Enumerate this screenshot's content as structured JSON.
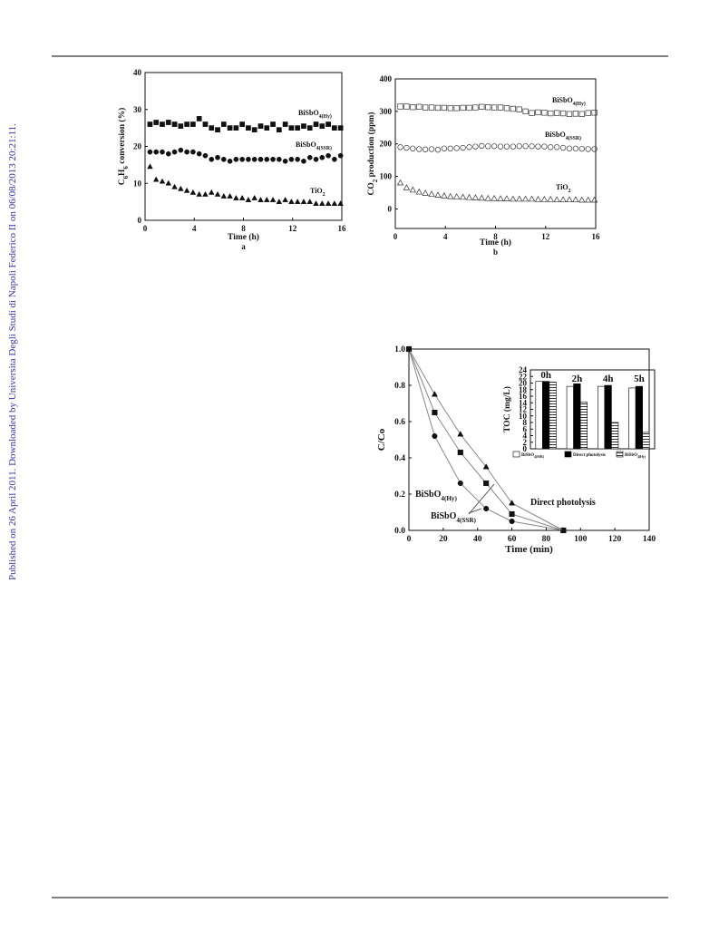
{
  "side_note": "Published on 26 April 2011. Downloaded by Universita Degli Studi di Napoli Federico II on 06/08/2013 20:21:11.",
  "chart_data": [
    {
      "type": "scatter",
      "caption": "a",
      "xlabel": "Time (h)",
      "ylabel": [
        {
          "text": "C"
        },
        {
          "sub": "6"
        },
        {
          "text": "H"
        },
        {
          "sub": "6"
        },
        {
          "text": " conversion (%)"
        }
      ],
      "xlim": [
        0,
        16
      ],
      "xticks": [
        0,
        4,
        8,
        12,
        16
      ],
      "ylim": [
        0,
        40
      ],
      "yticks": [
        0,
        10,
        20,
        30,
        40
      ],
      "x": [
        0.4,
        0.9,
        1.4,
        1.9,
        2.4,
        2.9,
        3.4,
        3.9,
        4.4,
        4.9,
        5.4,
        5.9,
        6.4,
        6.9,
        7.4,
        7.9,
        8.4,
        8.9,
        9.4,
        9.9,
        10.4,
        10.9,
        11.4,
        11.9,
        12.4,
        12.9,
        13.4,
        13.9,
        14.4,
        14.9,
        15.4,
        15.9
      ],
      "series": [
        {
          "name": [
            {
              "text": "BiSbO"
            },
            {
              "sub": "4(Hy)"
            }
          ],
          "marker": "square",
          "color": "#111",
          "values": [
            26,
            26.5,
            26,
            26.5,
            26,
            25.5,
            26,
            26,
            27.5,
            26,
            25,
            24.5,
            26,
            25,
            25,
            26,
            25,
            24.5,
            25.5,
            25,
            26,
            24.5,
            26,
            25,
            25,
            25.5,
            25,
            26,
            25.5,
            26,
            25,
            25
          ]
        },
        {
          "name": [
            {
              "text": "BiSbO"
            },
            {
              "sub": "4(SSR)"
            }
          ],
          "marker": "circle",
          "color": "#111",
          "values": [
            18.5,
            18.5,
            18.5,
            18,
            18.5,
            19,
            18.5,
            18.5,
            18,
            17.5,
            16.5,
            17,
            16.5,
            16,
            16.5,
            16.5,
            16.5,
            16.5,
            16.5,
            16.5,
            16.5,
            16.5,
            16,
            16.5,
            16.5,
            16,
            17,
            16.5,
            17,
            17.5,
            16.5,
            17.5
          ]
        },
        {
          "name": [
            {
              "text": "TiO"
            },
            {
              "sub": "2"
            }
          ],
          "marker": "triangle",
          "color": "#111",
          "values": [
            14.5,
            11,
            10.5,
            10,
            9,
            8.5,
            8,
            7.5,
            7,
            7,
            7.5,
            7,
            6.5,
            6.5,
            6,
            6,
            5.5,
            6,
            5.5,
            5.5,
            5.5,
            5,
            5.5,
            5,
            5,
            5,
            5,
            4.5,
            4.5,
            4.5,
            4.5,
            4.5
          ]
        }
      ]
    },
    {
      "type": "scatter",
      "caption": "b",
      "xlabel": "Time (h)",
      "ylabel": [
        {
          "text": "CO"
        },
        {
          "sub": "2"
        },
        {
          "text": " production (ppm)"
        }
      ],
      "xlim": [
        0,
        16
      ],
      "xticks": [
        0,
        4,
        8,
        12,
        16
      ],
      "ylim": [
        -60,
        400
      ],
      "yticks": [
        0,
        100,
        200,
        300,
        400
      ],
      "x": [
        0.4,
        0.9,
        1.4,
        1.9,
        2.4,
        2.9,
        3.4,
        3.9,
        4.4,
        4.9,
        5.4,
        5.9,
        6.4,
        6.9,
        7.4,
        7.9,
        8.4,
        8.9,
        9.4,
        9.9,
        10.4,
        10.9,
        11.4,
        11.9,
        12.4,
        12.9,
        13.4,
        13.9,
        14.4,
        14.9,
        15.4,
        15.9
      ],
      "series": [
        {
          "name": [
            {
              "text": "BiSbO"
            },
            {
              "sub": "4(Hy)"
            }
          ],
          "marker": "square-open",
          "color": "#333",
          "values": [
            315,
            315,
            313,
            314,
            312,
            312,
            311,
            311,
            310,
            310,
            311,
            311,
            312,
            314,
            313,
            312,
            312,
            310,
            308,
            306,
            300,
            295,
            297,
            296,
            294,
            295,
            294,
            292,
            293,
            292,
            295,
            296
          ]
        },
        {
          "name": [
            {
              "text": "BiSbO"
            },
            {
              "sub": "4(SSR)"
            }
          ],
          "marker": "circle-open",
          "color": "#333",
          "values": [
            190,
            188,
            186,
            184,
            183,
            184,
            182,
            186,
            186,
            187,
            188,
            190,
            192,
            194,
            193,
            193,
            192,
            192,
            192,
            193,
            193,
            193,
            192,
            192,
            190,
            190,
            188,
            186,
            186,
            185,
            184,
            184
          ]
        },
        {
          "name": [
            {
              "text": "TiO"
            },
            {
              "sub": "2"
            }
          ],
          "marker": "triangle-open",
          "color": "#333",
          "values": [
            80,
            65,
            58,
            52,
            48,
            45,
            42,
            40,
            38,
            37,
            36,
            35,
            34,
            33,
            32,
            32,
            31,
            31,
            30,
            30,
            30,
            30,
            29,
            29,
            29,
            28,
            28,
            28,
            28,
            27,
            27,
            27
          ]
        }
      ]
    },
    {
      "type": "line",
      "xlabel": "Time (min)",
      "ylabel": [
        {
          "text": "C/Co"
        }
      ],
      "xlim": [
        0,
        140
      ],
      "xticks": [
        0,
        20,
        40,
        60,
        80,
        100,
        120,
        140
      ],
      "ylim": [
        0,
        1
      ],
      "yticks": [
        {
          "value": 0,
          "label": "0.0"
        },
        0.2,
        0.4,
        0.6,
        0.8,
        {
          "value": 1,
          "label": "1.0"
        }
      ],
      "x": [
        0,
        15,
        30,
        45,
        60,
        90
      ],
      "series": [
        {
          "name": [
            {
              "text": "BiSbO"
            },
            {
              "sub": "4(Hy)"
            }
          ],
          "marker": "circle",
          "color": "#888",
          "values": [
            1,
            0.52,
            0.26,
            0.12,
            0.05,
            0
          ]
        },
        {
          "name": [
            {
              "text": "BiSbO"
            },
            {
              "sub": "4(SSR)"
            }
          ],
          "marker": "square",
          "color": "#888",
          "values": [
            1,
            0.65,
            0.43,
            0.26,
            0.09,
            0
          ]
        },
        {
          "name": [
            {
              "text": "Direct photolysis"
            }
          ],
          "marker": "triangle",
          "color": "#888",
          "values": [
            1,
            0.75,
            0.53,
            0.35,
            0.15,
            0
          ]
        }
      ]
    },
    {
      "type": "bar",
      "ylabel": [
        {
          "text": "TOC (mg/L)"
        }
      ],
      "ylim": [
        0,
        24
      ],
      "yticks": [
        0,
        2,
        4,
        6,
        8,
        10,
        12,
        14,
        16,
        18,
        20,
        22,
        24
      ],
      "categories": [
        "0h",
        "2h",
        "4h",
        "5h"
      ],
      "series": [
        {
          "name": [
            {
              "text": "BiSbO"
            },
            {
              "sub": "4(SSR)"
            }
          ],
          "color": "#ffffff",
          "values": [
            20.5,
            19,
            19,
            18.5
          ]
        },
        {
          "name": [
            {
              "text": "Direct photolysis"
            }
          ],
          "color": "#000000",
          "values": [
            20.5,
            19.8,
            19.3,
            19
          ]
        },
        {
          "name": [
            {
              "text": "BiSbO"
            },
            {
              "sub": "4(Hy)"
            }
          ],
          "color": "hatch",
          "values": [
            20.3,
            14.2,
            8,
            5
          ]
        }
      ]
    }
  ]
}
